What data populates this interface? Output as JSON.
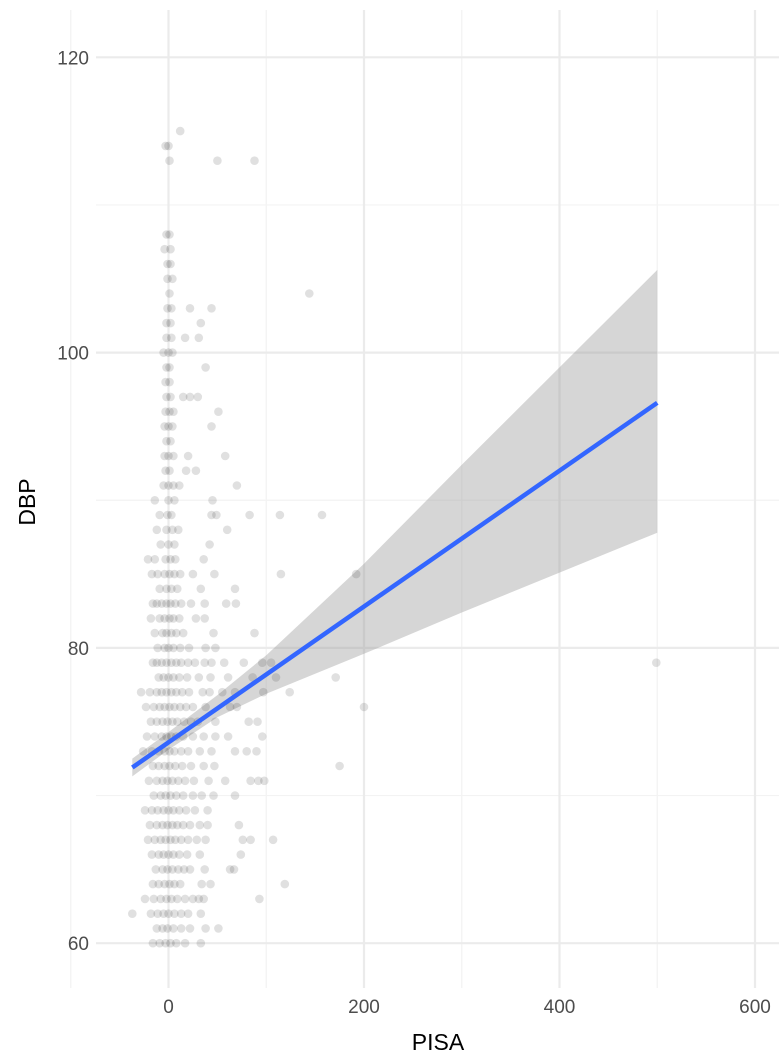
{
  "chart_data": {
    "type": "scatter",
    "title": "",
    "xlabel": "PISA",
    "ylabel": "DBP",
    "xlim": [
      -37,
      600
    ],
    "ylim": [
      57,
      121
    ],
    "x_ticks": [
      0,
      200,
      400,
      600
    ],
    "x_tick_labels": [
      "0",
      "200",
      "400",
      "600"
    ],
    "y_ticks": [
      60,
      80,
      100,
      120
    ],
    "y_tick_labels": [
      "60",
      "80",
      "100",
      "120"
    ],
    "grid": true,
    "legend": "none",
    "point_color": "#000000",
    "point_alpha": 0.12,
    "points": [
      [
        -3,
        114
      ],
      [
        0,
        114
      ],
      [
        1,
        113
      ],
      [
        12,
        115
      ],
      [
        50,
        113
      ],
      [
        88,
        113
      ],
      [
        -2,
        108
      ],
      [
        1,
        108
      ],
      [
        -4,
        107
      ],
      [
        2,
        107
      ],
      [
        -1,
        106
      ],
      [
        2,
        106
      ],
      [
        -1,
        105
      ],
      [
        4,
        105
      ],
      [
        1,
        104
      ],
      [
        144,
        104
      ],
      [
        -1,
        103
      ],
      [
        3,
        103
      ],
      [
        22,
        103
      ],
      [
        44,
        103
      ],
      [
        -2,
        102
      ],
      [
        2,
        102
      ],
      [
        33,
        102
      ],
      [
        -2,
        101
      ],
      [
        3,
        101
      ],
      [
        17,
        101
      ],
      [
        31,
        101
      ],
      [
        -5,
        100
      ],
      [
        0,
        100
      ],
      [
        4,
        100
      ],
      [
        -2,
        99
      ],
      [
        1,
        99
      ],
      [
        38,
        99
      ],
      [
        -3,
        98
      ],
      [
        1,
        98
      ],
      [
        -2,
        97
      ],
      [
        2,
        97
      ],
      [
        15,
        97
      ],
      [
        22,
        97
      ],
      [
        30,
        97
      ],
      [
        -3,
        96
      ],
      [
        1,
        96
      ],
      [
        5,
        96
      ],
      [
        51,
        96
      ],
      [
        -4,
        95
      ],
      [
        0,
        95
      ],
      [
        4,
        95
      ],
      [
        44,
        95
      ],
      [
        -2,
        94
      ],
      [
        2,
        94
      ],
      [
        -4,
        93
      ],
      [
        0,
        93
      ],
      [
        5,
        93
      ],
      [
        20,
        93
      ],
      [
        58,
        93
      ],
      [
        -3,
        92
      ],
      [
        1,
        92
      ],
      [
        18,
        92
      ],
      [
        28,
        92
      ],
      [
        -5,
        91
      ],
      [
        0,
        91
      ],
      [
        5,
        91
      ],
      [
        11,
        91
      ],
      [
        70,
        91
      ],
      [
        -14,
        90
      ],
      [
        0,
        90
      ],
      [
        6,
        90
      ],
      [
        45,
        90
      ],
      [
        -9,
        89
      ],
      [
        -1,
        89
      ],
      [
        3,
        89
      ],
      [
        44,
        89
      ],
      [
        49,
        89
      ],
      [
        83,
        89
      ],
      [
        114,
        89
      ],
      [
        157,
        89
      ],
      [
        -12,
        88
      ],
      [
        -2,
        88
      ],
      [
        4,
        88
      ],
      [
        10,
        88
      ],
      [
        60,
        88
      ],
      [
        -8,
        87
      ],
      [
        0,
        87
      ],
      [
        6,
        87
      ],
      [
        42,
        87
      ],
      [
        -21,
        86
      ],
      [
        -14,
        86
      ],
      [
        -3,
        86
      ],
      [
        2,
        86
      ],
      [
        7,
        86
      ],
      [
        36,
        86
      ],
      [
        -17,
        85
      ],
      [
        -11,
        85
      ],
      [
        -4,
        85
      ],
      [
        1,
        85
      ],
      [
        6,
        85
      ],
      [
        12,
        85
      ],
      [
        25,
        85
      ],
      [
        47,
        85
      ],
      [
        115,
        85
      ],
      [
        192,
        85
      ],
      [
        -9,
        84
      ],
      [
        -2,
        84
      ],
      [
        3,
        84
      ],
      [
        9,
        84
      ],
      [
        33,
        84
      ],
      [
        68,
        84
      ],
      [
        -16,
        83
      ],
      [
        -12,
        83
      ],
      [
        -7,
        83
      ],
      [
        -2,
        83
      ],
      [
        2,
        83
      ],
      [
        7,
        83
      ],
      [
        13,
        83
      ],
      [
        23,
        83
      ],
      [
        37,
        83
      ],
      [
        59,
        83
      ],
      [
        69,
        83
      ],
      [
        -18,
        82
      ],
      [
        -9,
        82
      ],
      [
        -4,
        82
      ],
      [
        1,
        82
      ],
      [
        5,
        82
      ],
      [
        11,
        82
      ],
      [
        28,
        82
      ],
      [
        37,
        82
      ],
      [
        -14,
        81
      ],
      [
        -6,
        81
      ],
      [
        -2,
        81
      ],
      [
        3,
        81
      ],
      [
        8,
        81
      ],
      [
        15,
        81
      ],
      [
        46,
        81
      ],
      [
        88,
        81
      ],
      [
        -11,
        80
      ],
      [
        -4,
        80
      ],
      [
        0,
        80
      ],
      [
        5,
        80
      ],
      [
        12,
        80
      ],
      [
        21,
        80
      ],
      [
        38,
        80
      ],
      [
        48,
        80
      ],
      [
        -16,
        79
      ],
      [
        -12,
        79
      ],
      [
        -7,
        79
      ],
      [
        -2,
        79
      ],
      [
        3,
        79
      ],
      [
        8,
        79
      ],
      [
        13,
        79
      ],
      [
        20,
        79
      ],
      [
        27,
        79
      ],
      [
        37,
        79
      ],
      [
        44,
        79
      ],
      [
        57,
        79
      ],
      [
        77,
        79
      ],
      [
        96,
        79
      ],
      [
        105,
        79
      ],
      [
        499,
        79
      ],
      [
        -10,
        78
      ],
      [
        -5,
        78
      ],
      [
        0,
        78
      ],
      [
        5,
        78
      ],
      [
        11,
        78
      ],
      [
        19,
        78
      ],
      [
        31,
        78
      ],
      [
        43,
        78
      ],
      [
        61,
        78
      ],
      [
        86,
        78
      ],
      [
        110,
        78
      ],
      [
        171,
        78
      ],
      [
        -28,
        77
      ],
      [
        -19,
        77
      ],
      [
        -12,
        77
      ],
      [
        -7,
        77
      ],
      [
        -2,
        77
      ],
      [
        3,
        77
      ],
      [
        8,
        77
      ],
      [
        14,
        77
      ],
      [
        21,
        77
      ],
      [
        35,
        77
      ],
      [
        42,
        77
      ],
      [
        55,
        77
      ],
      [
        68,
        77
      ],
      [
        97,
        77
      ],
      [
        124,
        77
      ],
      [
        -23,
        76
      ],
      [
        -15,
        76
      ],
      [
        -9,
        76
      ],
      [
        -4,
        76
      ],
      [
        1,
        76
      ],
      [
        6,
        76
      ],
      [
        12,
        76
      ],
      [
        18,
        76
      ],
      [
        25,
        76
      ],
      [
        38,
        76
      ],
      [
        63,
        76
      ],
      [
        70,
        76
      ],
      [
        200,
        76
      ],
      [
        -18,
        75
      ],
      [
        -12,
        75
      ],
      [
        -6,
        75
      ],
      [
        -1,
        75
      ],
      [
        4,
        75
      ],
      [
        9,
        75
      ],
      [
        16,
        75
      ],
      [
        23,
        75
      ],
      [
        30,
        75
      ],
      [
        48,
        75
      ],
      [
        82,
        75
      ],
      [
        91,
        75
      ],
      [
        -22,
        74
      ],
      [
        -14,
        74
      ],
      [
        -7,
        74
      ],
      [
        -2,
        74
      ],
      [
        3,
        74
      ],
      [
        8,
        74
      ],
      [
        15,
        74
      ],
      [
        25,
        74
      ],
      [
        36,
        74
      ],
      [
        48,
        74
      ],
      [
        61,
        74
      ],
      [
        96,
        74
      ],
      [
        -26,
        73
      ],
      [
        -17,
        73
      ],
      [
        -10,
        73
      ],
      [
        -4,
        73
      ],
      [
        1,
        73
      ],
      [
        6,
        73
      ],
      [
        13,
        73
      ],
      [
        20,
        73
      ],
      [
        32,
        73
      ],
      [
        44,
        73
      ],
      [
        68,
        73
      ],
      [
        80,
        73
      ],
      [
        90,
        73
      ],
      [
        -16,
        72
      ],
      [
        -10,
        72
      ],
      [
        -4,
        72
      ],
      [
        1,
        72
      ],
      [
        7,
        72
      ],
      [
        14,
        72
      ],
      [
        23,
        72
      ],
      [
        36,
        72
      ],
      [
        47,
        72
      ],
      [
        175,
        72
      ],
      [
        -20,
        71
      ],
      [
        -12,
        71
      ],
      [
        -6,
        71
      ],
      [
        -1,
        71
      ],
      [
        4,
        71
      ],
      [
        10,
        71
      ],
      [
        17,
        71
      ],
      [
        26,
        71
      ],
      [
        41,
        71
      ],
      [
        58,
        71
      ],
      [
        84,
        71
      ],
      [
        92,
        71
      ],
      [
        98,
        71
      ],
      [
        -15,
        70
      ],
      [
        -8,
        70
      ],
      [
        -3,
        70
      ],
      [
        2,
        70
      ],
      [
        8,
        70
      ],
      [
        15,
        70
      ],
      [
        25,
        70
      ],
      [
        34,
        70
      ],
      [
        46,
        70
      ],
      [
        68,
        70
      ],
      [
        -24,
        69
      ],
      [
        -17,
        69
      ],
      [
        -11,
        69
      ],
      [
        -5,
        69
      ],
      [
        0,
        69
      ],
      [
        5,
        69
      ],
      [
        11,
        69
      ],
      [
        18,
        69
      ],
      [
        27,
        69
      ],
      [
        40,
        69
      ],
      [
        -19,
        68
      ],
      [
        -12,
        68
      ],
      [
        -6,
        68
      ],
      [
        -1,
        68
      ],
      [
        4,
        68
      ],
      [
        9,
        68
      ],
      [
        15,
        68
      ],
      [
        22,
        68
      ],
      [
        32,
        68
      ],
      [
        40,
        68
      ],
      [
        72,
        68
      ],
      [
        -21,
        67
      ],
      [
        -14,
        67
      ],
      [
        -8,
        67
      ],
      [
        -3,
        67
      ],
      [
        2,
        67
      ],
      [
        7,
        67
      ],
      [
        13,
        67
      ],
      [
        20,
        67
      ],
      [
        29,
        67
      ],
      [
        38,
        67
      ],
      [
        76,
        67
      ],
      [
        84,
        67
      ],
      [
        107,
        67
      ],
      [
        -17,
        66
      ],
      [
        -10,
        66
      ],
      [
        -5,
        66
      ],
      [
        0,
        66
      ],
      [
        5,
        66
      ],
      [
        11,
        66
      ],
      [
        19,
        66
      ],
      [
        32,
        66
      ],
      [
        74,
        66
      ],
      [
        -13,
        65
      ],
      [
        -6,
        65
      ],
      [
        -1,
        65
      ],
      [
        4,
        65
      ],
      [
        10,
        65
      ],
      [
        16,
        65
      ],
      [
        22,
        65
      ],
      [
        37,
        65
      ],
      [
        63,
        65
      ],
      [
        67,
        65
      ],
      [
        -16,
        64
      ],
      [
        -10,
        64
      ],
      [
        -4,
        64
      ],
      [
        1,
        64
      ],
      [
        6,
        64
      ],
      [
        12,
        64
      ],
      [
        34,
        64
      ],
      [
        43,
        64
      ],
      [
        119,
        64
      ],
      [
        -24,
        63
      ],
      [
        -15,
        63
      ],
      [
        -8,
        63
      ],
      [
        -2,
        63
      ],
      [
        3,
        63
      ],
      [
        9,
        63
      ],
      [
        17,
        63
      ],
      [
        25,
        63
      ],
      [
        31,
        63
      ],
      [
        36,
        63
      ],
      [
        93,
        63
      ],
      [
        -37,
        62
      ],
      [
        -18,
        62
      ],
      [
        -11,
        62
      ],
      [
        -5,
        62
      ],
      [
        0,
        62
      ],
      [
        6,
        62
      ],
      [
        13,
        62
      ],
      [
        20,
        62
      ],
      [
        33,
        62
      ],
      [
        -12,
        61
      ],
      [
        -6,
        61
      ],
      [
        -1,
        61
      ],
      [
        5,
        61
      ],
      [
        13,
        61
      ],
      [
        22,
        61
      ],
      [
        38,
        61
      ],
      [
        51,
        61
      ],
      [
        -16,
        60
      ],
      [
        -9,
        60
      ],
      [
        -3,
        60
      ],
      [
        2,
        60
      ],
      [
        8,
        60
      ],
      [
        17,
        60
      ],
      [
        33,
        60
      ]
    ],
    "fit_line": {
      "color": "#3366ff",
      "x": [
        -37,
        500
      ],
      "y": [
        71.9,
        96.6
      ]
    },
    "confidence_band": {
      "color": "#999999",
      "x": [
        -37,
        0,
        50,
        100,
        200,
        300,
        400,
        500
      ],
      "lower": [
        71.3,
        73.1,
        75.3,
        76.9,
        79.6,
        82.4,
        85.1,
        87.8
      ],
      "upper": [
        72.5,
        74.3,
        76.8,
        79.5,
        85.7,
        92.4,
        99.0,
        105.6
      ]
    }
  }
}
